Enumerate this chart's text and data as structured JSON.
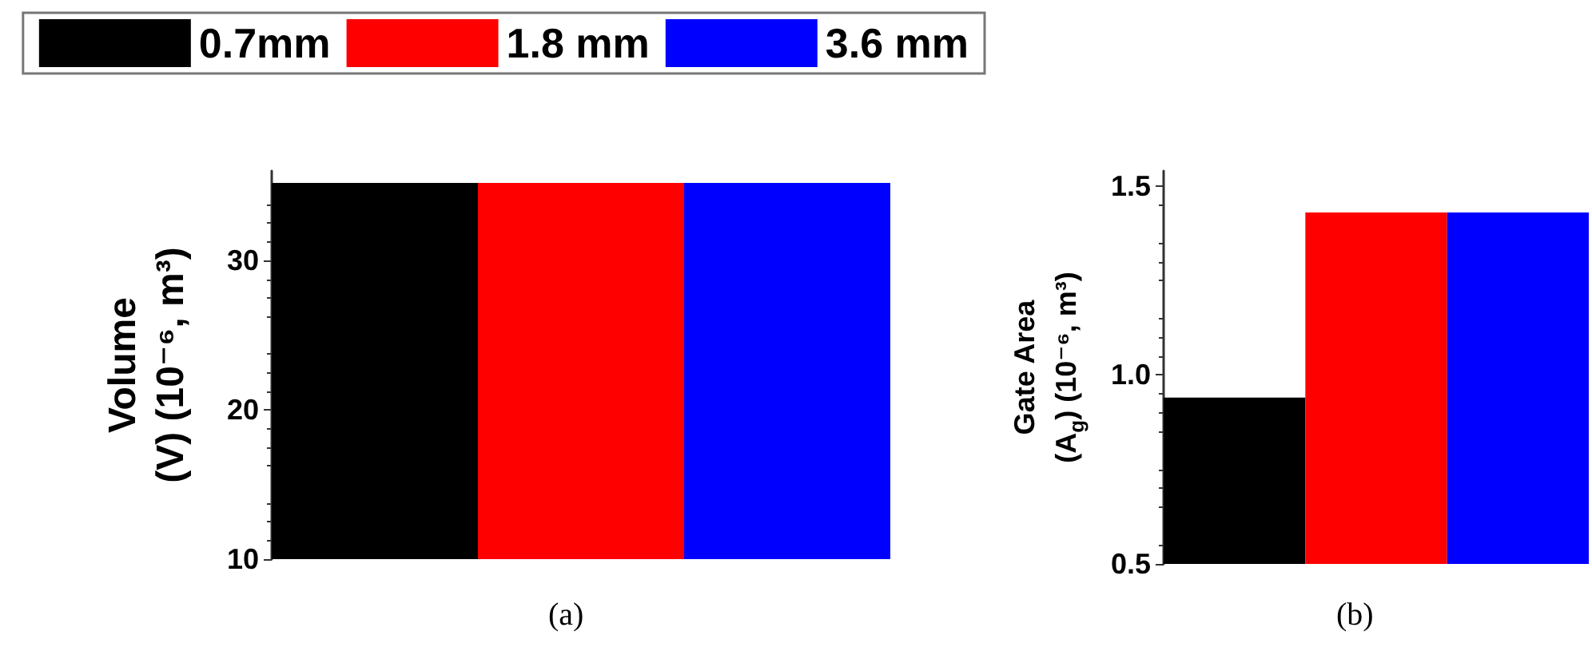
{
  "chart_data": [
    {
      "type": "bar",
      "ylabel": "Volume\n(V) (10⁻⁶, m³)",
      "categories": [
        null
      ],
      "ylim": [
        10,
        36
      ],
      "yticks": [
        10,
        20,
        30
      ],
      "legend": "top",
      "annotations": [
        "(a)"
      ],
      "series": [
        {
          "name": "0.7mm",
          "color": "#000000",
          "values": [
            35.2
          ]
        },
        {
          "name": "1.8 mm",
          "color": "#ff0000",
          "values": [
            35.2
          ]
        },
        {
          "name": "3.6 mm",
          "color": "#0000ff",
          "values": [
            35.2
          ]
        }
      ]
    },
    {
      "type": "bar",
      "ylabel": "Gate Area\n(A$_{g}$) (10⁻⁶, m³)",
      "categories": [
        null,
        null,
        null
      ],
      "ylim": [
        0.5,
        1.54
      ],
      "yticks": [
        {
          "value": 0.5,
          "label": "0.5"
        },
        {
          "value": 1,
          "label": "1.0"
        },
        {
          "value": 1.5,
          "label": "1.5"
        }
      ],
      "annotations": [
        "(b)"
      ],
      "values": [
        0.94,
        1.43,
        1.43
      ],
      "colors": [
        "#000000",
        "#ff0000",
        "#0000ff"
      ]
    }
  ]
}
